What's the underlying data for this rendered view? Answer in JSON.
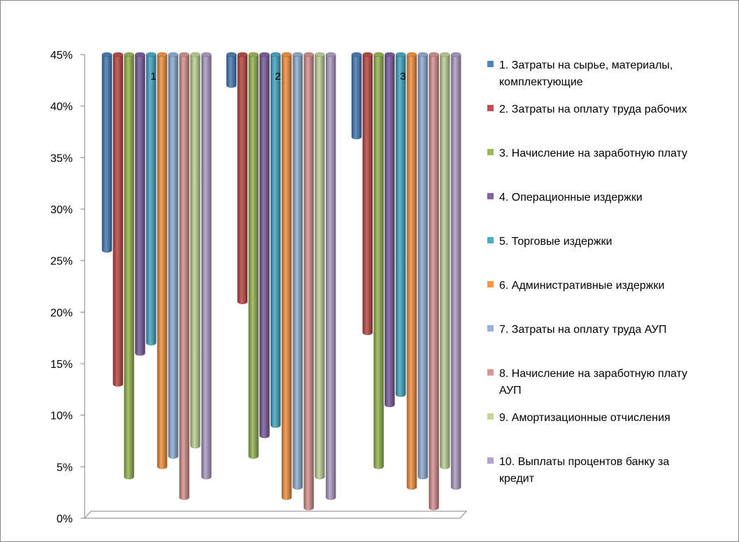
{
  "chart_data": {
    "type": "bar",
    "style": "3d-cylinder",
    "categories": [
      "1",
      "2",
      "3"
    ],
    "ylim": [
      0,
      45
    ],
    "yticks": [
      0,
      5,
      10,
      15,
      20,
      25,
      30,
      35,
      40,
      45
    ],
    "ytick_labels": [
      "0%",
      "5%",
      "10%",
      "15%",
      "20%",
      "25%",
      "30%",
      "35%",
      "40%",
      "45%"
    ],
    "bar_direction": "hanging-from-top",
    "legend_position": "right",
    "grid": false,
    "series": [
      {
        "name": "1. Затраты на сырье, материалы, комплектующие",
        "label_lines": [
          "1. Затраты на сырье, материалы,",
          "комплектующие"
        ],
        "color": "#4F81BD",
        "values": [
          26,
          42,
          37
        ]
      },
      {
        "name": "2. Затраты на оплату труда рабочих",
        "label_lines": [
          "2. Затраты на оплату труда рабочих"
        ],
        "color": "#C0504D",
        "values": [
          13,
          21,
          18
        ]
      },
      {
        "name": "3. Начисление на заработную плату",
        "label_lines": [
          "3. Начисление на заработную плату"
        ],
        "color": "#9BBB59",
        "values": [
          4,
          6,
          5
        ]
      },
      {
        "name": "4. Операционные издержки",
        "label_lines": [
          "4. Операционные издержки"
        ],
        "color": "#8064A2",
        "values": [
          16,
          8,
          11
        ]
      },
      {
        "name": "5. Торговые издержки",
        "label_lines": [
          "5. Торговые издержки"
        ],
        "color": "#4BACC6",
        "values": [
          17,
          9,
          12
        ]
      },
      {
        "name": "6. Административные издержки",
        "label_lines": [
          "6. Административные издержки"
        ],
        "color": "#F79646",
        "values": [
          5,
          2,
          3
        ]
      },
      {
        "name": "7. Затраты на оплату труда АУП",
        "label_lines": [
          "7. Затраты на оплату труда АУП"
        ],
        "color": "#95B3D7",
        "values": [
          6,
          3,
          4
        ]
      },
      {
        "name": "8. Начисление на заработную  плату АУП",
        "label_lines": [
          "8. Начисление на заработную  плату",
          "АУП"
        ],
        "color": "#D99694",
        "values": [
          2,
          1,
          1
        ]
      },
      {
        "name": "9. Амортизационные отчисления",
        "label_lines": [
          "9. Амортизационные отчисления"
        ],
        "color": "#C3D69B",
        "values": [
          7,
          4,
          5
        ]
      },
      {
        "name": "10. Выплаты процентов банку за кредит",
        "label_lines": [
          "10. Выплаты процентов банку за",
          "кредит"
        ],
        "color": "#B2A2C7",
        "values": [
          4,
          2,
          3
        ]
      }
    ]
  }
}
